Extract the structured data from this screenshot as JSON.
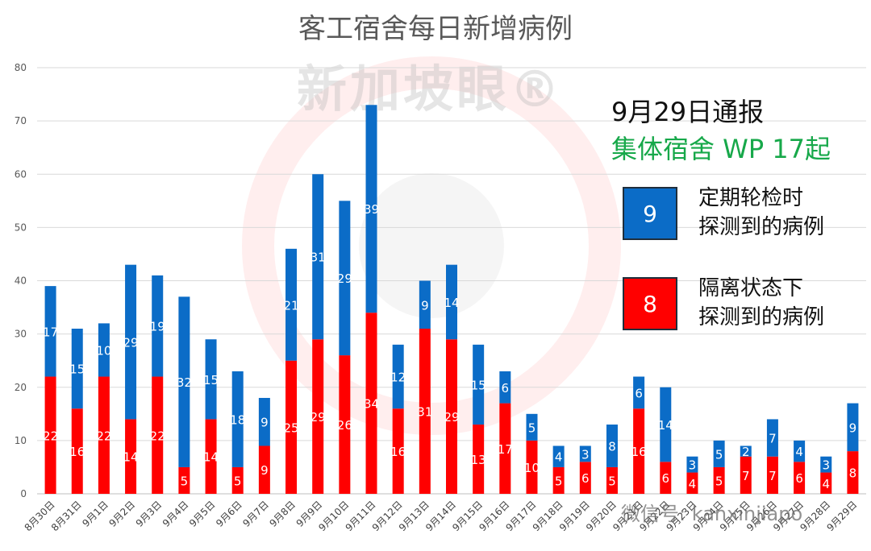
{
  "chart_data": {
    "type": "bar",
    "stacked": true,
    "title": "客工宿舍每日新增病例",
    "categories": [
      "8月30日",
      "8月31日",
      "9月1日",
      "9月2日",
      "9月3日",
      "9月4日",
      "9月5日",
      "9月6日",
      "9月7日",
      "9月8日",
      "9月9日",
      "9月10日",
      "9月11日",
      "9月12日",
      "9月13日",
      "9月14日",
      "9月15日",
      "9月16日",
      "9月17日",
      "9月18日",
      "9月19日",
      "9月20日",
      "9月21日",
      "9月22日",
      "9月23日",
      "9月24日",
      "9月25日",
      "9月26日",
      "9月27日",
      "9月28日",
      "9月29日"
    ],
    "series": [
      {
        "color": "#ff0000",
        "values": [
          22,
          16,
          22,
          14,
          22,
          5,
          14,
          5,
          9,
          25,
          29,
          26,
          34,
          16,
          31,
          29,
          13,
          17,
          10,
          5,
          6,
          5,
          16,
          6,
          4,
          5,
          7,
          7,
          6,
          4,
          8
        ]
      },
      {
        "color": "#0b6cc7",
        "values": [
          17,
          15,
          10,
          29,
          19,
          32,
          15,
          18,
          9,
          21,
          31,
          29,
          39,
          12,
          9,
          14,
          15,
          6,
          5,
          4,
          3,
          8,
          6,
          14,
          3,
          5,
          2,
          7,
          4,
          3,
          9
        ]
      }
    ],
    "ylim": [
      0,
      80
    ],
    "yticks": [
      0,
      10,
      20,
      30,
      40,
      50,
      60,
      70,
      80
    ],
    "grid": true
  },
  "watermark": {
    "text": "新加坡眼®",
    "wechat": "微信号: kanxinjiapo"
  },
  "notice": {
    "title": "9月29日通报",
    "subtitle": "集体宿舍 WP 17起",
    "legend": [
      {
        "count": "9",
        "color": "#0b6cc7",
        "line1": "定期轮检时",
        "line2": "探测到的病例"
      },
      {
        "count": "8",
        "color": "#ff0000",
        "line1": "隔离状态下",
        "line2": "探测到的病例"
      }
    ]
  }
}
